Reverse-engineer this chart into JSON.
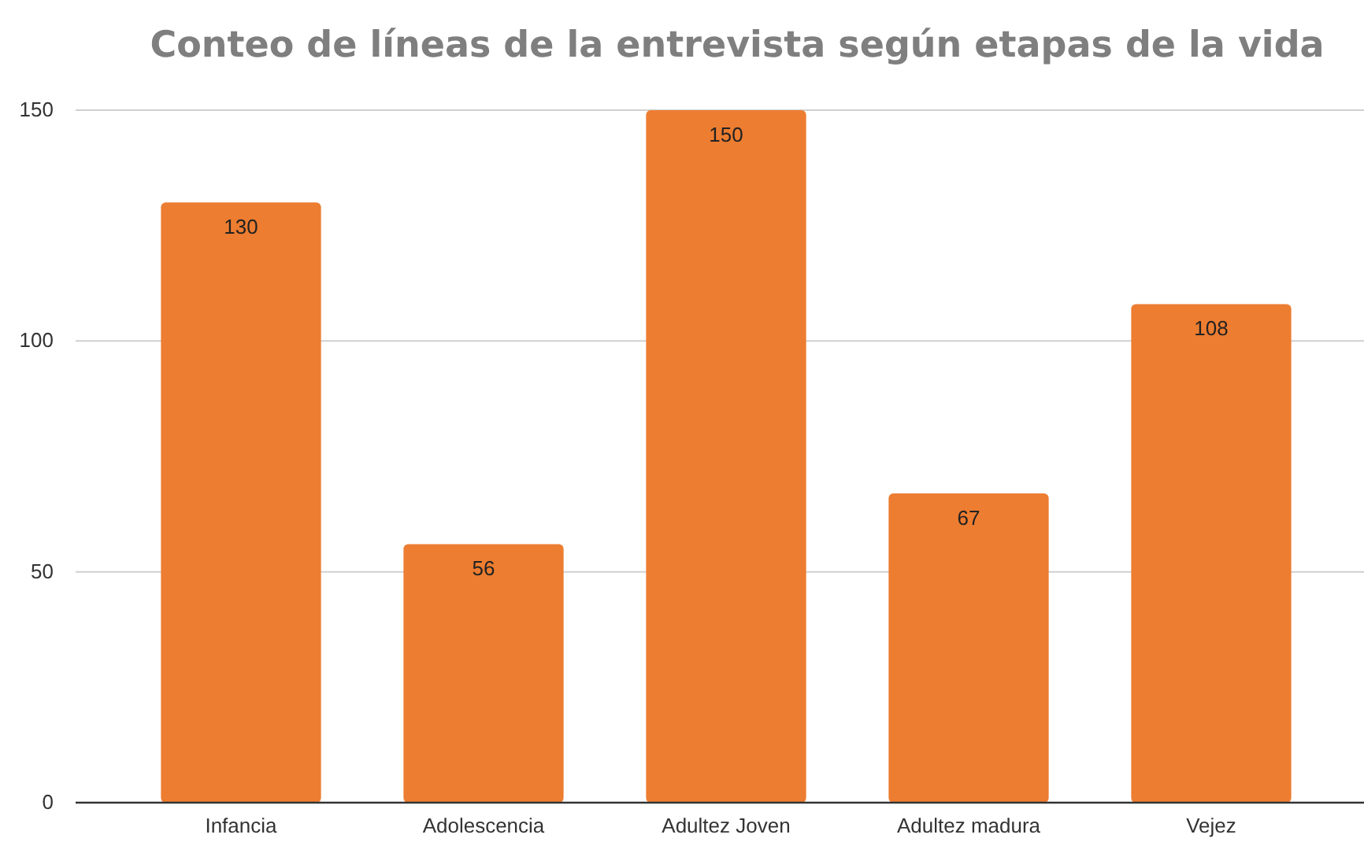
{
  "chart_data": {
    "type": "bar",
    "title": "Conteo de líneas de la entrevista según etapas de la vida",
    "categories": [
      "Infancia",
      "Adolescencia",
      "Adultez Joven",
      "Adultez madura",
      "Vejez"
    ],
    "values": [
      130,
      56,
      150,
      67,
      108
    ],
    "color": "#ed7d31",
    "ylim": [
      0,
      150
    ],
    "yticks": [
      0,
      50,
      100,
      150
    ],
    "grid": "y",
    "data_labels": true
  }
}
